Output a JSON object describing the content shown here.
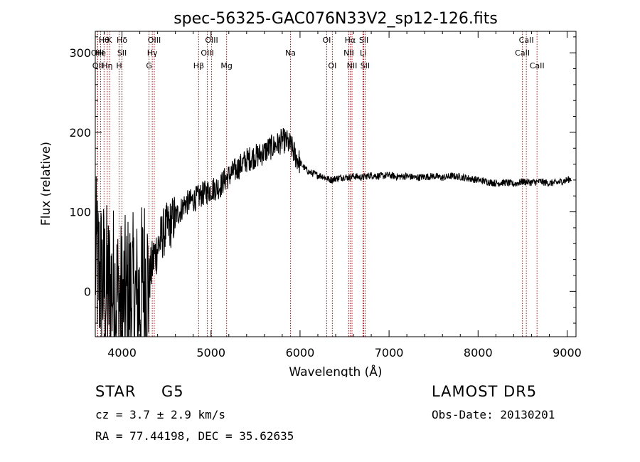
{
  "chart_data": {
    "type": "line",
    "title": "spec-56325-GAC076N33V2_sp12-126.fits",
    "xlabel": "Wavelength (Å)",
    "ylabel": "Flux (relative)",
    "xlim": [
      3700,
      9100
    ],
    "ylim": [
      -57,
      327
    ],
    "xticks": [
      4000,
      5000,
      6000,
      7000,
      8000,
      9000
    ],
    "yticks": [
      0,
      100,
      200,
      300
    ],
    "line_color": "#000000",
    "marker_color": "#c00000",
    "series": [
      {
        "x": [
          3700,
          3750,
          3800,
          3850,
          3900,
          3950,
          4000,
          4050,
          4100,
          4150,
          4200,
          4250,
          4300,
          4350,
          4400,
          4450,
          4500,
          4550,
          4600,
          4650,
          4700,
          4750,
          4800,
          4850,
          4900,
          4950,
          5000,
          5050,
          5100,
          5150,
          5200,
          5250,
          5300,
          5350,
          5400,
          5450,
          5500,
          5550,
          5600,
          5650,
          5700,
          5750,
          5800,
          5850,
          5900,
          5950,
          6000,
          6050,
          6100,
          6150,
          6200,
          6250,
          6300,
          6350,
          6400,
          6450,
          6500,
          6550,
          6600,
          6650,
          6700,
          6750,
          6800,
          6900,
          7000,
          7100,
          7200,
          7300,
          7400,
          7500,
          7600,
          7700,
          7800,
          7900,
          8000,
          8100,
          8200,
          8300,
          8400,
          8500,
          8600,
          8700,
          8800,
          8900,
          9000,
          9050
        ],
        "y": [
          40,
          20,
          10,
          0,
          5,
          -10,
          -20,
          -10,
          -5,
          -15,
          -10,
          20,
          10,
          40,
          55,
          70,
          80,
          85,
          95,
          100,
          110,
          112,
          115,
          118,
          122,
          125,
          128,
          130,
          132,
          140,
          145,
          150,
          155,
          160,
          165,
          168,
          170,
          172,
          175,
          180,
          182,
          185,
          190,
          188,
          182,
          170,
          162,
          155,
          150,
          148,
          146,
          145,
          142,
          140,
          142,
          143,
          144,
          143,
          145,
          144,
          143,
          145,
          146,
          145,
          146,
          144,
          145,
          143,
          144,
          145,
          143,
          145,
          144,
          142,
          140,
          138,
          136,
          137,
          135,
          138,
          137,
          138,
          136,
          137,
          140,
          142
        ]
      }
    ],
    "spectral_lines": [
      {
        "label": "Hθ",
        "x": 3798,
        "row": 0
      },
      {
        "label": "K",
        "x": 3860,
        "row": 0
      },
      {
        "label": "Hδ",
        "x": 4000,
        "row": 0
      },
      {
        "label": "OIII",
        "x": 4363,
        "row": 0
      },
      {
        "label": "OIII",
        "x": 5007,
        "row": 0
      },
      {
        "label": "OI",
        "x": 6300,
        "row": 0
      },
      {
        "label": "Hα",
        "x": 6563,
        "row": 0
      },
      {
        "label": "SII",
        "x": 6716,
        "row": 0
      },
      {
        "label": "CaII",
        "x": 8542,
        "row": 0
      },
      {
        "label": "OIII",
        "x": 3725,
        "row": 1
      },
      {
        "label": "He",
        "x": 3760,
        "row": 1
      },
      {
        "label": "SII",
        "x": 4000,
        "row": 1
      },
      {
        "label": "Hγ",
        "x": 4340,
        "row": 1
      },
      {
        "label": "OIII",
        "x": 4959,
        "row": 1
      },
      {
        "label": "Na",
        "x": 5893,
        "row": 1
      },
      {
        "label": "NII",
        "x": 6548,
        "row": 1
      },
      {
        "label": "Li",
        "x": 6708,
        "row": 1
      },
      {
        "label": "CaII",
        "x": 8498,
        "row": 1
      },
      {
        "label": "OII",
        "x": 3727,
        "row": 2
      },
      {
        "label": "Hη",
        "x": 3835,
        "row": 2
      },
      {
        "label": "H",
        "x": 3968,
        "row": 2
      },
      {
        "label": "G",
        "x": 4304,
        "row": 2
      },
      {
        "label": "Hβ",
        "x": 4861,
        "row": 2
      },
      {
        "label": "Mg",
        "x": 5175,
        "row": 2
      },
      {
        "label": "OI",
        "x": 6363,
        "row": 2
      },
      {
        "label": "NII",
        "x": 6584,
        "row": 2
      },
      {
        "label": "SII",
        "x": 6731,
        "row": 2
      },
      {
        "label": "CaII",
        "x": 8662,
        "row": 2
      }
    ]
  },
  "info": {
    "object_class": "STAR",
    "subclass": "G5",
    "survey": "LAMOST DR5",
    "cz": "cz = 3.7 ± 2.9 km/s",
    "obs_date": "Obs-Date: 20130201",
    "radec": "RA =  77.44198, DEC =  35.62635"
  }
}
